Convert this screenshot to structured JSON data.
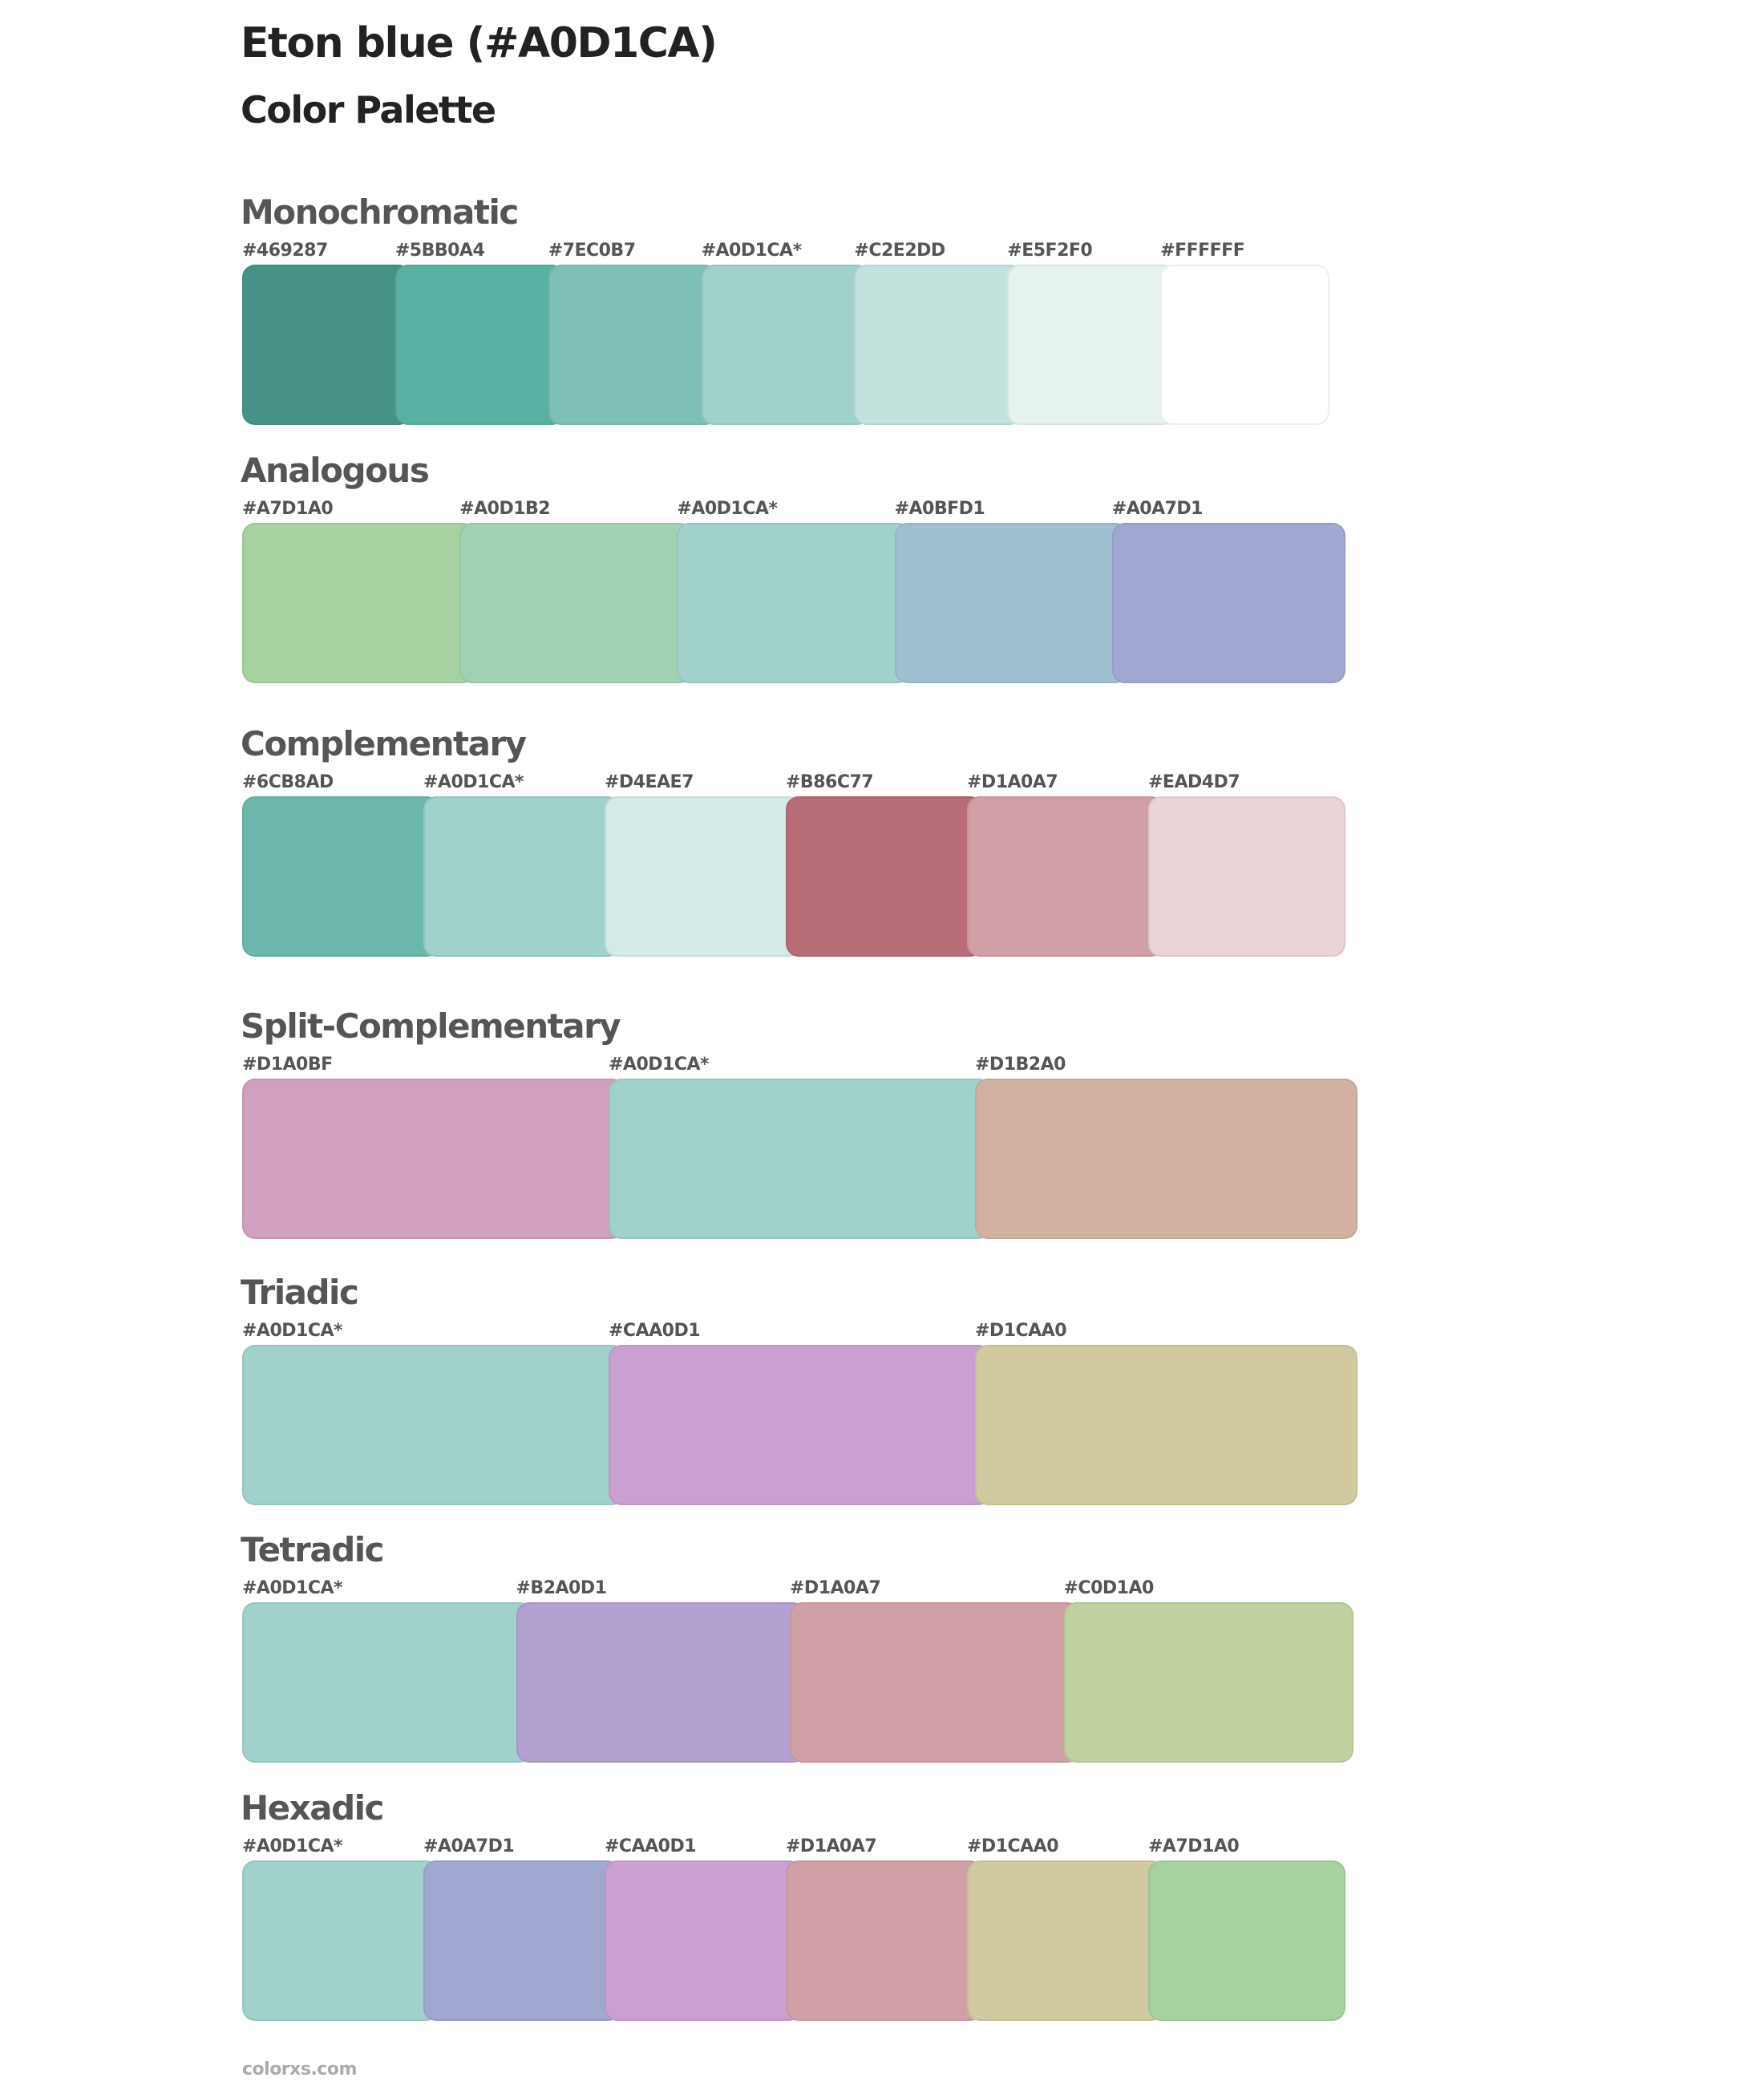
{
  "header": {
    "title": "Eton blue (#A0D1CA)",
    "subtitle": "Color Palette"
  },
  "sections": [
    {
      "heading": "Monochromatic",
      "swatches": [
        {
          "label": "#469287",
          "color": "#469287"
        },
        {
          "label": "#5BB0A4",
          "color": "#5BB0A4"
        },
        {
          "label": "#7EC0B7",
          "color": "#7EC0B7"
        },
        {
          "label": "#A0D1CA*",
          "color": "#A0D1CA"
        },
        {
          "label": "#C2E2DD",
          "color": "#C2E2DD"
        },
        {
          "label": "#E5F2F0",
          "color": "#E5F2F0"
        },
        {
          "label": "#FFFFFF",
          "color": "#FFFFFF"
        }
      ]
    },
    {
      "heading": "Analogous",
      "swatches": [
        {
          "label": "#A7D1A0",
          "color": "#A7D1A0"
        },
        {
          "label": "#A0D1B2",
          "color": "#A0D1B2"
        },
        {
          "label": "#A0D1CA*",
          "color": "#A0D1CA"
        },
        {
          "label": "#A0BFD1",
          "color": "#A0BFD1"
        },
        {
          "label": "#A0A7D1",
          "color": "#A0A7D1"
        }
      ]
    },
    {
      "heading": "Complementary",
      "swatches": [
        {
          "label": "#6CB8AD",
          "color": "#6CB8AD"
        },
        {
          "label": "#A0D1CA*",
          "color": "#A0D1CA"
        },
        {
          "label": "#D4EAE7",
          "color": "#D4EAE7"
        },
        {
          "label": "#B86C77",
          "color": "#B86C77"
        },
        {
          "label": "#D1A0A7",
          "color": "#D1A0A7"
        },
        {
          "label": "#EAD4D7",
          "color": "#EAD4D7"
        }
      ]
    },
    {
      "heading": "Split-Complementary",
      "swatches": [
        {
          "label": "#D1A0BF",
          "color": "#D1A0BF"
        },
        {
          "label": "#A0D1CA*",
          "color": "#A0D1CA"
        },
        {
          "label": "#D1B2A0",
          "color": "#D1B2A0"
        }
      ]
    },
    {
      "heading": "Triadic",
      "swatches": [
        {
          "label": "#A0D1CA*",
          "color": "#A0D1CA"
        },
        {
          "label": "#CAA0D1",
          "color": "#CAA0D1"
        },
        {
          "label": "#D1CAA0",
          "color": "#D1CAA0"
        }
      ]
    },
    {
      "heading": "Tetradic",
      "swatches": [
        {
          "label": "#A0D1CA*",
          "color": "#A0D1CA"
        },
        {
          "label": "#B2A0D1",
          "color": "#B2A0D1"
        },
        {
          "label": "#D1A0A7",
          "color": "#D1A0A7"
        },
        {
          "label": "#C0D1A0",
          "color": "#C0D1A0"
        }
      ]
    },
    {
      "heading": "Hexadic",
      "swatches": [
        {
          "label": "#A0D1CA*",
          "color": "#A0D1CA"
        },
        {
          "label": "#A0A7D1",
          "color": "#A0A7D1"
        },
        {
          "label": "#CAA0D1",
          "color": "#CAA0D1"
        },
        {
          "label": "#D1A0A7",
          "color": "#D1A0A7"
        },
        {
          "label": "#D1CAA0",
          "color": "#D1CAA0"
        },
        {
          "label": "#A7D1A0",
          "color": "#A7D1A0"
        }
      ]
    }
  ],
  "footer": {
    "site": "colorxs.com"
  }
}
